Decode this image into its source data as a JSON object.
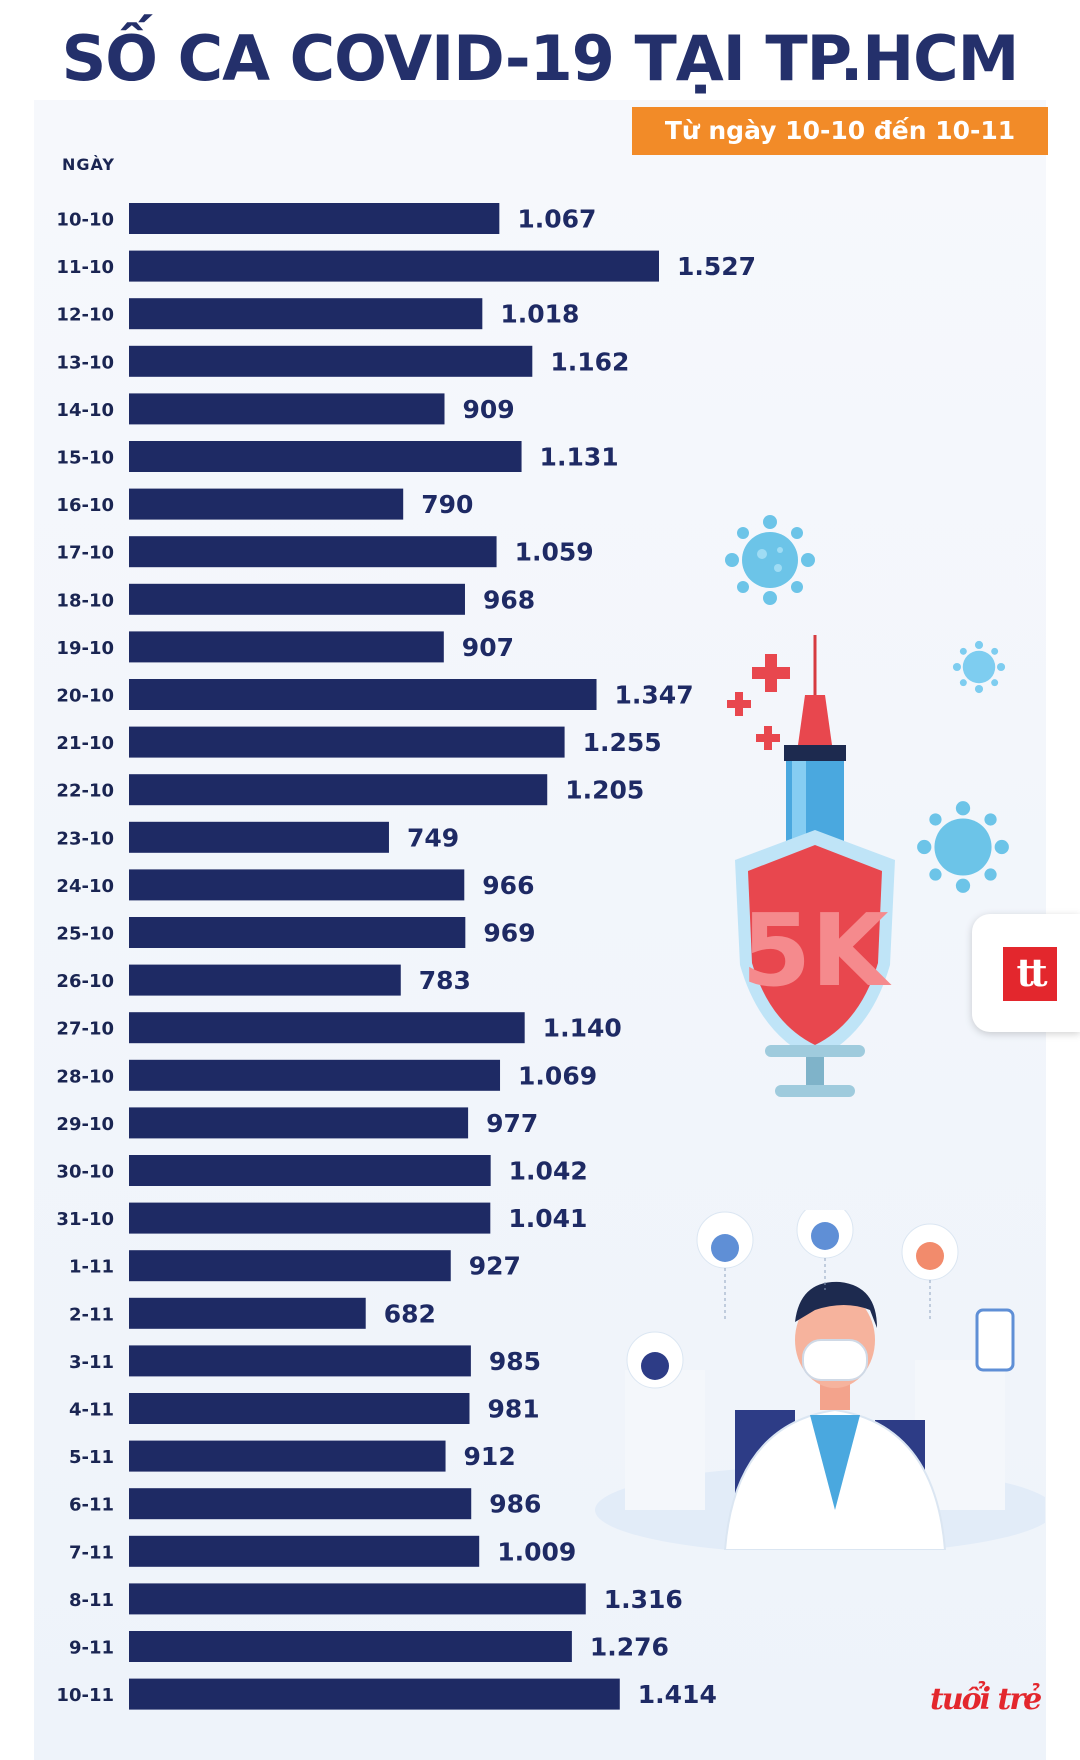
{
  "header": {
    "title": "SỐ CA COVID-19 TẠI TP.HCM",
    "subtitle": "Từ ngày 10-10 đến 10-11"
  },
  "badges": {
    "shield_text": "5K",
    "tt_logo": "tt",
    "brand": "tuổi trẻ"
  },
  "colors": {
    "bar": "#1e2a64",
    "title": "#24306b",
    "accent": "#f28b28",
    "brand": "#e3272d"
  },
  "chart_data": {
    "type": "bar",
    "orientation": "horizontal",
    "title": "SỐ CA COVID-19 TẠI TP.HCM",
    "subtitle": "Từ ngày 10-10 đến 10-11",
    "ylabel": "NGÀY",
    "xlim": [
      0,
      1600
    ],
    "grid": false,
    "legend": "none",
    "categories": [
      "10-10",
      "11-10",
      "12-10",
      "13-10",
      "14-10",
      "15-10",
      "16-10",
      "17-10",
      "18-10",
      "19-10",
      "20-10",
      "21-10",
      "22-10",
      "23-10",
      "24-10",
      "25-10",
      "26-10",
      "27-10",
      "28-10",
      "29-10",
      "30-10",
      "31-10",
      "1-11",
      "2-11",
      "3-11",
      "4-11",
      "5-11",
      "6-11",
      "7-11",
      "8-11",
      "9-11",
      "10-11"
    ],
    "values": [
      1067,
      1527,
      1018,
      1162,
      909,
      1131,
      790,
      1059,
      968,
      907,
      1347,
      1255,
      1205,
      749,
      966,
      969,
      783,
      1140,
      1069,
      977,
      1042,
      1041,
      927,
      682,
      985,
      981,
      912,
      986,
      1009,
      1316,
      1276,
      1414
    ],
    "value_labels": [
      "1.067",
      "1.527",
      "1.018",
      "1.162",
      "909",
      "1.131",
      "790",
      "1.059",
      "968",
      "907",
      "1.347",
      "1.255",
      "1.205",
      "749",
      "966",
      "969",
      "783",
      "1.140",
      "1.069",
      "977",
      "1.042",
      "1.041",
      "927",
      "682",
      "985",
      "981",
      "912",
      "986",
      "1.009",
      "1.316",
      "1.276",
      "1.414"
    ]
  }
}
